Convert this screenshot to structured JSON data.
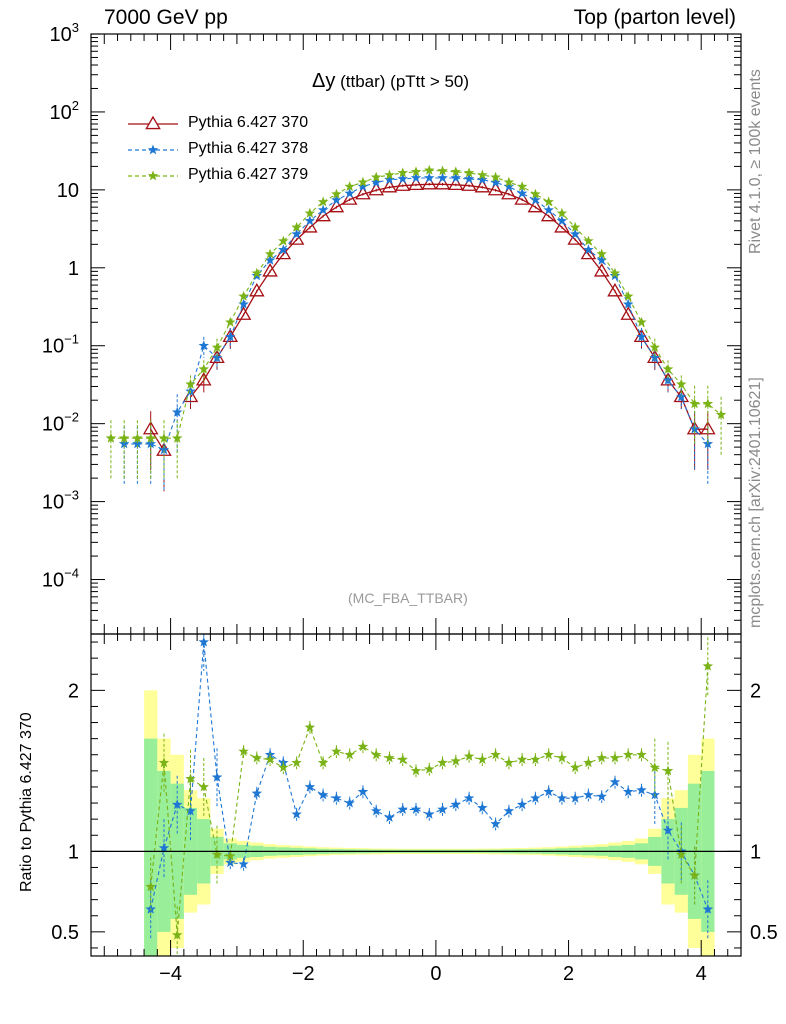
{
  "header": {
    "energy": "7000 GeV pp",
    "level": "Top (parton level)"
  },
  "side_text": {
    "rivet": "Rivet 4.1.0, ≥ 100k events",
    "mcplots": "mcplots.cern.ch [arXiv:2401.10621]"
  },
  "chart_data": {
    "type": "line",
    "title_symbol": "Δy",
    "title_rest": "(ttbar) (pTtt > 50)",
    "watermark": "(MC_FBA_TTBAR)",
    "xlabel": "",
    "ylabel": "",
    "ratio_ylabel": "Ratio to Pythia 6.427 370",
    "xlim": [
      -5.2,
      4.6
    ],
    "ylim_log": [
      2e-05,
      1000
    ],
    "ratio_ylim": [
      0.35,
      2.35
    ],
    "x_ticks": [
      -4,
      -2,
      0,
      2,
      4
    ],
    "x_tick_labels": [
      "−4",
      "−2",
      "0",
      "2",
      "4"
    ],
    "y_ticks": [
      {
        "label": "10",
        "exp": "3",
        "value": 1000
      },
      {
        "label": "10",
        "exp": "2",
        "value": 100
      },
      {
        "label": "10",
        "exp": "",
        "value": 10
      },
      {
        "label": "1",
        "exp": "",
        "value": 1
      },
      {
        "label": "10",
        "exp": "−1",
        "value": 0.1
      },
      {
        "label": "10",
        "exp": "−2",
        "value": 0.01
      },
      {
        "label": "10",
        "exp": "−3",
        "value": 0.001
      },
      {
        "label": "10",
        "exp": "−4",
        "value": 0.0001
      }
    ],
    "ratio_ticks": [
      {
        "label": "0.5",
        "value": 0.5
      },
      {
        "label": "1",
        "value": 1
      },
      {
        "label": "2",
        "value": 2
      }
    ],
    "x": [
      -4.9,
      -4.7,
      -4.5,
      -4.3,
      -4.1,
      -3.9,
      -3.7,
      -3.5,
      -3.3,
      -3.1,
      -2.9,
      -2.7,
      -2.5,
      -2.3,
      -2.1,
      -1.9,
      -1.7,
      -1.5,
      -1.3,
      -1.1,
      -0.9,
      -0.7,
      -0.5,
      -0.3,
      -0.1,
      0.1,
      0.3,
      0.5,
      0.7,
      0.9,
      1.1,
      1.3,
      1.5,
      1.7,
      1.9,
      2.1,
      2.3,
      2.5,
      2.7,
      2.9,
      3.1,
      3.3,
      3.5,
      3.7,
      3.9,
      4.1,
      4.3
    ],
    "series": [
      {
        "name": "Pythia 6.427 370",
        "color": "#a50f15",
        "marker": "triangle-open",
        "dash": "solid",
        "values": [
          null,
          null,
          null,
          0.0085,
          0.0045,
          null,
          0.022,
          0.036,
          0.07,
          0.13,
          0.25,
          0.5,
          0.9,
          1.5,
          2.3,
          3.3,
          4.6,
          6.0,
          7.5,
          8.8,
          9.9,
          10.8,
          11.3,
          11.6,
          11.8,
          11.8,
          11.6,
          11.3,
          10.8,
          9.9,
          8.8,
          7.5,
          6.0,
          4.6,
          3.3,
          2.3,
          1.5,
          0.9,
          0.5,
          0.25,
          0.13,
          0.07,
          0.036,
          0.022,
          0.0085,
          0.0085,
          null
        ]
      },
      {
        "name": "Pythia 6.427 378",
        "color": "#1f77d4",
        "marker": "star",
        "dash": "dashed",
        "values": [
          null,
          0.0055,
          0.0055,
          0.0055,
          0.0046,
          0.014,
          0.026,
          0.1,
          0.07,
          0.13,
          0.34,
          0.79,
          1.25,
          1.7,
          2.7,
          4.0,
          5.5,
          7.4,
          9.0,
          11.0,
          12.4,
          13.5,
          13.8,
          14.2,
          14.2,
          14.2,
          14.2,
          13.8,
          13.5,
          12.4,
          11.0,
          9.0,
          7.4,
          5.5,
          4.0,
          2.7,
          1.7,
          1.25,
          0.79,
          0.34,
          0.13,
          0.07,
          0.036,
          0.022,
          0.0085,
          0.0055,
          null
        ]
      },
      {
        "name": "Pythia 6.427 379",
        "color": "#7ab317",
        "marker": "star",
        "dash": "dashed",
        "values": [
          0.0065,
          0.0065,
          0.0065,
          0.0065,
          0.0065,
          0.0065,
          0.032,
          0.05,
          0.095,
          0.2,
          0.43,
          0.85,
          1.5,
          2.2,
          3.3,
          5.0,
          7.0,
          8.8,
          11.0,
          12.5,
          14.5,
          15.5,
          16.5,
          17.0,
          17.8,
          17.5,
          17.0,
          16.5,
          15.5,
          14.5,
          12.5,
          11.0,
          8.8,
          7.0,
          5.0,
          3.3,
          2.2,
          1.5,
          0.85,
          0.43,
          0.2,
          0.095,
          0.05,
          0.032,
          0.018,
          0.018,
          0.013
        ]
      }
    ],
    "ratios": [
      {
        "name": "Pythia 6.427 378",
        "values": [
          null,
          null,
          null,
          0.64,
          1.02,
          1.29,
          1.25,
          2.3,
          1.46,
          0.93,
          0.92,
          1.36,
          1.6,
          1.55,
          1.23,
          1.4,
          1.35,
          1.33,
          1.3,
          1.37,
          1.25,
          1.21,
          1.26,
          1.26,
          1.23,
          1.26,
          1.29,
          1.33,
          1.27,
          1.17,
          1.25,
          1.29,
          1.33,
          1.37,
          1.33,
          1.33,
          1.35,
          1.34,
          1.43,
          1.37,
          1.38,
          1.35,
          1.13,
          1.0,
          0.85,
          0.64,
          null
        ]
      },
      {
        "name": "Pythia 6.427 379",
        "values": [
          null,
          null,
          null,
          0.78,
          1.55,
          0.48,
          1.45,
          1.4,
          0.98,
          0.97,
          1.62,
          1.58,
          1.57,
          1.52,
          1.55,
          1.77,
          1.55,
          1.62,
          1.6,
          1.65,
          1.6,
          1.58,
          1.57,
          1.5,
          1.51,
          1.55,
          1.56,
          1.59,
          1.57,
          1.6,
          1.55,
          1.57,
          1.57,
          1.6,
          1.58,
          1.52,
          1.55,
          1.58,
          1.58,
          1.6,
          1.6,
          1.52,
          1.5,
          0.98,
          0.85,
          2.15,
          null
        ]
      }
    ],
    "band_yellow": [
      null,
      null,
      null,
      1.0,
      0.7,
      0.6,
      0.38,
      0.33,
      0.14,
      0.08,
      0.065,
      0.055,
      0.045,
      0.04,
      0.035,
      0.03,
      0.026,
      0.023,
      0.021,
      0.02,
      0.018,
      0.017,
      0.016,
      0.016,
      0.016,
      0.016,
      0.016,
      0.016,
      0.017,
      0.018,
      0.02,
      0.021,
      0.023,
      0.026,
      0.03,
      0.035,
      0.04,
      0.045,
      0.055,
      0.065,
      0.08,
      0.14,
      0.33,
      0.38,
      0.6,
      0.7,
      null
    ],
    "band_green": [
      null,
      null,
      null,
      0.7,
      0.5,
      0.42,
      0.27,
      0.2,
      0.09,
      0.05,
      0.04,
      0.035,
      0.028,
      0.025,
      0.022,
      0.019,
      0.016,
      0.014,
      0.013,
      0.012,
      0.011,
      0.01,
      0.01,
      0.01,
      0.01,
      0.01,
      0.01,
      0.01,
      0.01,
      0.011,
      0.012,
      0.013,
      0.014,
      0.016,
      0.019,
      0.022,
      0.025,
      0.028,
      0.035,
      0.04,
      0.05,
      0.09,
      0.2,
      0.27,
      0.42,
      0.5,
      null
    ]
  }
}
